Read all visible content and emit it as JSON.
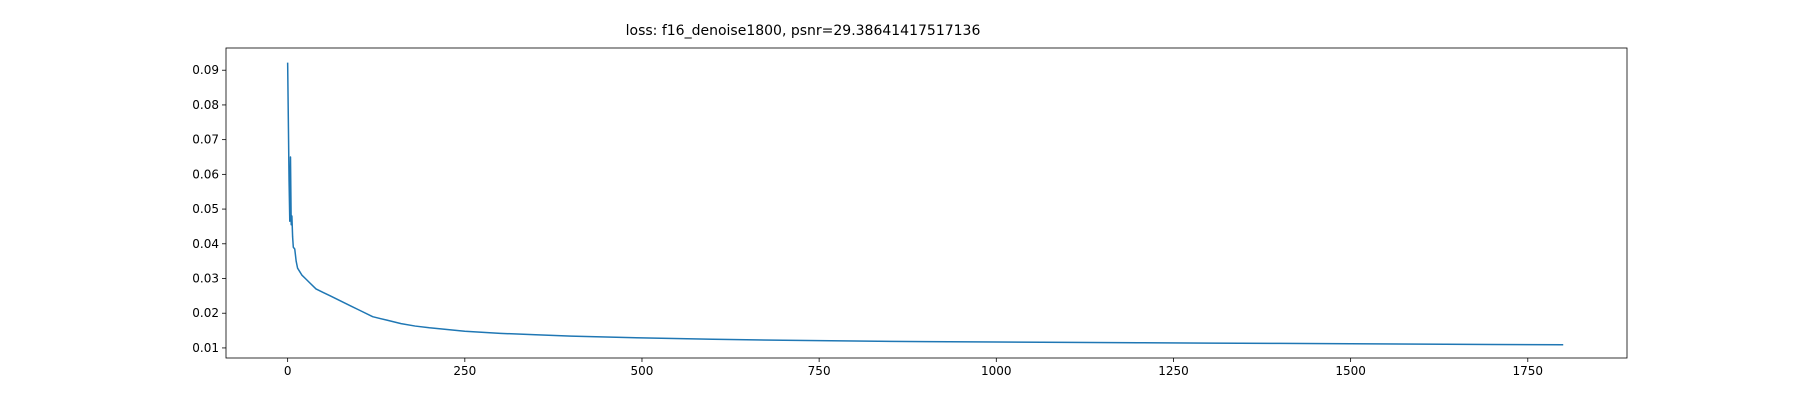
{
  "chart_data": {
    "type": "line",
    "title": "loss: f16_denoise1800, psnr=29.38641417517136",
    "xlabel": "",
    "ylabel": "",
    "xlim": [
      -87,
      1890
    ],
    "ylim": [
      0.0071,
      0.0964
    ],
    "grid": false,
    "x_ticks": [
      0,
      250,
      500,
      750,
      1000,
      1250,
      1500,
      1750
    ],
    "x_tick_labels": [
      "0",
      "250",
      "500",
      "750",
      "1000",
      "1250",
      "1500",
      "1750"
    ],
    "y_ticks": [
      0.01,
      0.02,
      0.03,
      0.04,
      0.05,
      0.06,
      0.07,
      0.08,
      0.09
    ],
    "y_tick_labels": [
      "0.01",
      "0.02",
      "0.03",
      "0.04",
      "0.05",
      "0.06",
      "0.07",
      "0.08",
      "0.09"
    ],
    "line_color": "#1f77b4",
    "series": [
      {
        "x": [
          0,
          1,
          2,
          3,
          4,
          5,
          6,
          7,
          8,
          10,
          12,
          14,
          17,
          20,
          25,
          30,
          40,
          50,
          60,
          70,
          80,
          90,
          100,
          120,
          140,
          160,
          180,
          200,
          250,
          300,
          350,
          400,
          500,
          600,
          700,
          800,
          900,
          1000,
          1100,
          1200,
          1300,
          1400,
          1500,
          1600,
          1700,
          1800
        ],
        "y": [
          0.0922,
          0.075,
          0.058,
          0.0465,
          0.065,
          0.0455,
          0.048,
          0.042,
          0.039,
          0.0385,
          0.035,
          0.033,
          0.032,
          0.031,
          0.03,
          0.029,
          0.027,
          0.026,
          0.025,
          0.024,
          0.023,
          0.022,
          0.021,
          0.019,
          0.018,
          0.017,
          0.0163,
          0.0158,
          0.0148,
          0.0142,
          0.0138,
          0.0134,
          0.0129,
          0.0125,
          0.0122,
          0.012,
          0.0118,
          0.0117,
          0.0116,
          0.0115,
          0.0114,
          0.0113,
          0.0112,
          0.0111,
          0.011,
          0.0109
        ]
      }
    ]
  }
}
